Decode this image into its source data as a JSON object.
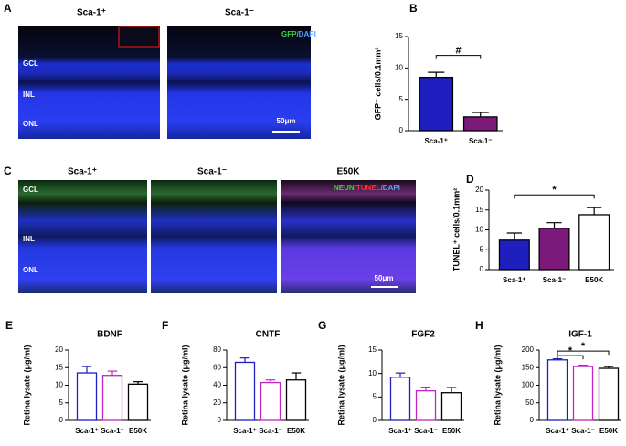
{
  "image_panels": {
    "A": {
      "letter": "A",
      "titles": [
        "Sca-1⁺",
        "Sca-1⁻"
      ],
      "layers": [
        "GCL",
        "INL",
        "ONL"
      ],
      "stain": [
        "GFP",
        "/DAPI"
      ],
      "scale": "50μm"
    },
    "C": {
      "letter": "C",
      "titles": [
        "Sca-1⁺",
        "Sca-1⁻",
        "E50K"
      ],
      "layers": [
        "GCL",
        "INL",
        "ONL"
      ],
      "stain": [
        "NEUN",
        "/TUNEL",
        "/DAPI"
      ],
      "scale": "50μm"
    }
  },
  "chart_data": [
    {
      "type": "bar",
      "panel": "B",
      "y_label": "GFP⁺ cells/0.1mm²",
      "categories": [
        "Sca-1⁺",
        "Sca-1⁻"
      ],
      "values": [
        8.5,
        2.2
      ],
      "errors": [
        0.8,
        0.7
      ],
      "colors": [
        "#1f1fbf",
        "#7b1a7b"
      ],
      "filled": true,
      "ylim": [
        0,
        15
      ],
      "yticks": [
        0,
        5,
        10,
        15
      ],
      "annotations": [
        "#"
      ]
    },
    {
      "type": "bar",
      "panel": "D",
      "y_label": "TUNEL⁺ cells/0.1mm²",
      "categories": [
        "Sca-1⁺",
        "Sca-1⁻",
        "E50K"
      ],
      "values": [
        7.4,
        10.4,
        13.8
      ],
      "errors": [
        1.8,
        1.4,
        1.8
      ],
      "colors": [
        "#1f1fbf",
        "#7b1a7b",
        "#ffffff"
      ],
      "filled": true,
      "ylim": [
        0,
        20
      ],
      "yticks": [
        0,
        5,
        10,
        15,
        20
      ],
      "annotations": [
        "*"
      ]
    },
    {
      "type": "bar",
      "panel": "E",
      "title": "BDNF",
      "y_label": "Retina lysate (μg/ml)",
      "categories": [
        "Sca-1⁺",
        "Sca-1⁻",
        "E50K"
      ],
      "values": [
        13.5,
        12.8,
        10.3
      ],
      "errors": [
        1.8,
        1.2,
        0.7
      ],
      "colors": [
        "#1f1fbf",
        "#c026c0",
        "#000000"
      ],
      "filled": false,
      "ylim": [
        0,
        20
      ],
      "yticks": [
        0,
        5,
        10,
        15,
        20
      ],
      "annotations": []
    },
    {
      "type": "bar",
      "panel": "F",
      "title": "CNTF",
      "y_label": "Retina lysate (μg/ml)",
      "categories": [
        "Sca-1⁺",
        "Sca-1⁻",
        "E50K"
      ],
      "values": [
        66,
        43,
        46
      ],
      "errors": [
        5,
        3,
        8
      ],
      "colors": [
        "#1f1fbf",
        "#c026c0",
        "#000000"
      ],
      "filled": false,
      "ylim": [
        0,
        80
      ],
      "yticks": [
        0,
        20,
        40,
        60,
        80
      ],
      "annotations": []
    },
    {
      "type": "bar",
      "panel": "G",
      "title": "FGF2",
      "y_label": "Retina lysate (μg/ml)",
      "categories": [
        "Sca-1⁺",
        "Sca-1⁻",
        "E50K"
      ],
      "values": [
        9.2,
        6.3,
        5.9
      ],
      "errors": [
        0.9,
        0.8,
        1.1
      ],
      "colors": [
        "#1f1fbf",
        "#c026c0",
        "#000000"
      ],
      "filled": false,
      "ylim": [
        0,
        15
      ],
      "yticks": [
        0,
        5,
        10,
        15
      ],
      "annotations": []
    },
    {
      "type": "bar",
      "panel": "H",
      "title": "IGF-1",
      "y_label": "Retina lysate (μg/ml)",
      "categories": [
        "Sca-1⁺",
        "Sca-1⁻",
        "E50K"
      ],
      "values": [
        172,
        153,
        148
      ],
      "errors": [
        3,
        4,
        5
      ],
      "colors": [
        "#1f1fbf",
        "#c026c0",
        "#000000"
      ],
      "filled": false,
      "ylim": [
        0,
        200
      ],
      "yticks": [
        0,
        50,
        100,
        150,
        200
      ],
      "annotations": [
        "*",
        "*"
      ]
    }
  ]
}
